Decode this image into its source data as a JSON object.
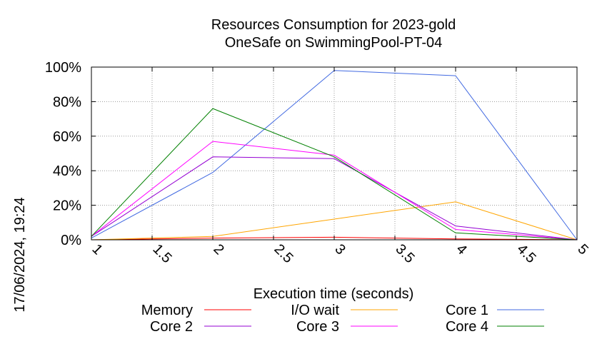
{
  "chart_data": {
    "type": "line",
    "title": "Resources Consumption for 2023-gold",
    "subtitle": "OneSafe on SwimmingPool-PT-04",
    "xlabel": "Execution time (seconds)",
    "ylabel": "",
    "timestamp": "17/06/2024, 19:24",
    "xlim": [
      1,
      5
    ],
    "ylim": [
      0,
      100
    ],
    "x_ticks": [
      {
        "value": 1,
        "label": "1"
      },
      {
        "value": 1.5,
        "label": "1.5"
      },
      {
        "value": 2,
        "label": "2"
      },
      {
        "value": 2.5,
        "label": "2.5"
      },
      {
        "value": 3,
        "label": "3"
      },
      {
        "value": 3.5,
        "label": "3.5"
      },
      {
        "value": 4,
        "label": "4"
      },
      {
        "value": 4.5,
        "label": "4.5"
      },
      {
        "value": 5,
        "label": "5"
      }
    ],
    "y_ticks": [
      {
        "value": 0,
        "label": "0%"
      },
      {
        "value": 20,
        "label": "20%"
      },
      {
        "value": 40,
        "label": "40%"
      },
      {
        "value": 60,
        "label": "60%"
      },
      {
        "value": 80,
        "label": "80%"
      },
      {
        "value": 100,
        "label": "100%"
      }
    ],
    "grid": true,
    "legend_position": "bottom",
    "x": [
      1,
      2,
      3,
      4,
      5
    ],
    "series": [
      {
        "name": "Memory",
        "color": "#ff0000",
        "values": [
          0,
          1,
          1.5,
          0.5,
          0
        ]
      },
      {
        "name": "I/O wait",
        "color": "#ffa500",
        "values": [
          0,
          2,
          12,
          22,
          0
        ]
      },
      {
        "name": "Core 1",
        "color": "#4169e1",
        "values": [
          1,
          39,
          98,
          95,
          0
        ]
      },
      {
        "name": "Core 2",
        "color": "#9400d3",
        "values": [
          2,
          48,
          47,
          8,
          0
        ]
      },
      {
        "name": "Core 3",
        "color": "#ff00ff",
        "values": [
          2,
          57,
          49,
          6,
          0
        ]
      },
      {
        "name": "Core 4",
        "color": "#008000",
        "values": [
          2,
          76,
          48,
          4,
          0
        ]
      }
    ]
  }
}
